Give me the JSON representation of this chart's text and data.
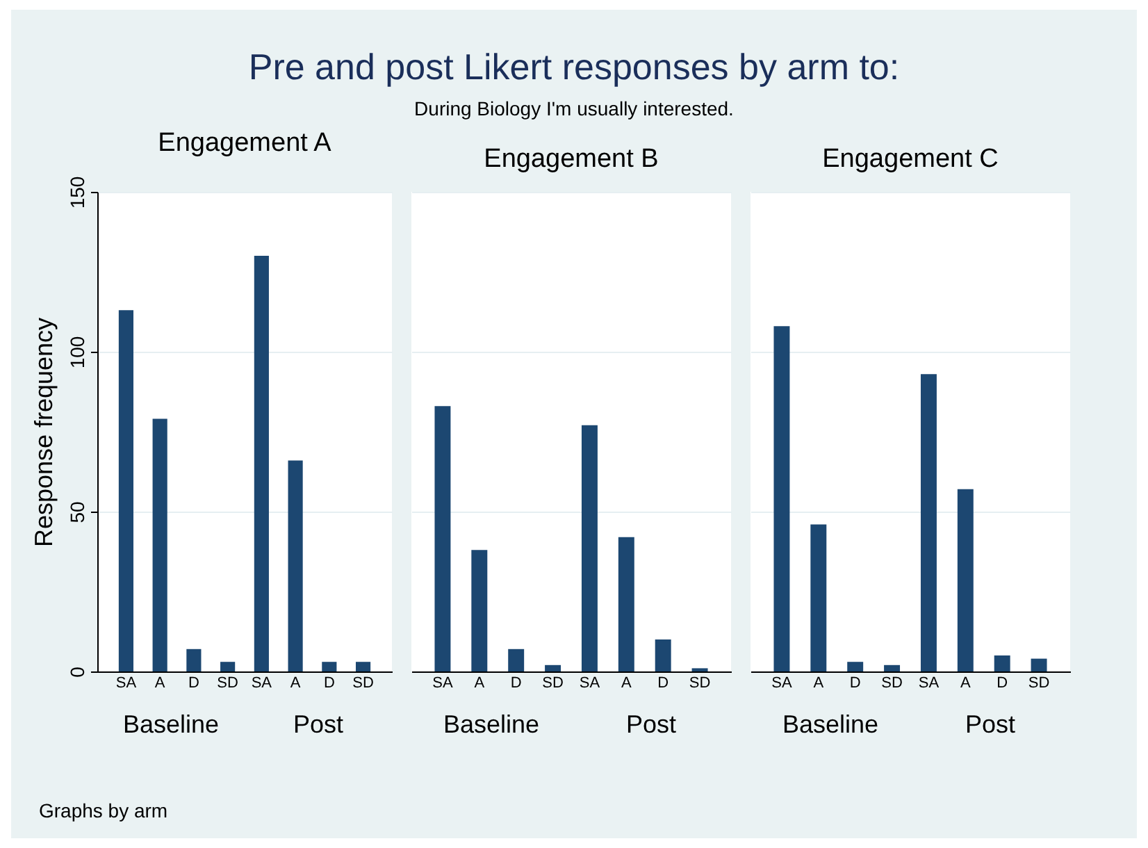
{
  "chart_data": [
    {
      "type": "other",
      "title": "Pre and post Likert responses by arm to:",
      "subtitle": "During Biology I'm usually interested.",
      "annotations": [
        "Graphs by arm"
      ]
    },
    {
      "type": "bar",
      "title": "Engagement A",
      "ylabel": "Response frequency",
      "categories": [
        "SA",
        "A",
        "D",
        "SD",
        "SA",
        "A",
        "D",
        "SD"
      ],
      "values": [
        113,
        79,
        7,
        3,
        130,
        66,
        3,
        3
      ],
      "color": "#1c4771",
      "ylim": [
        0,
        150
      ],
      "yticks": [
        0,
        50,
        100,
        150
      ],
      "grid": "y",
      "annotations": [
        "Baseline",
        "Post"
      ]
    },
    {
      "type": "bar",
      "title": "Engagement B",
      "categories": [
        "SA",
        "A",
        "D",
        "SD",
        "SA",
        "A",
        "D",
        "SD"
      ],
      "values": [
        83,
        38,
        7,
        2,
        77,
        42,
        10,
        1
      ],
      "color": "#1c4771",
      "ylim": [
        0,
        150
      ],
      "yticks": [
        0,
        50,
        100,
        150
      ],
      "grid": "y",
      "tick_labels": "x",
      "annotations": [
        "Baseline",
        "Post"
      ]
    },
    {
      "type": "bar",
      "title": "Engagement C",
      "categories": [
        "SA",
        "A",
        "D",
        "SD",
        "SA",
        "A",
        "D",
        "SD"
      ],
      "values": [
        108,
        46,
        3,
        2,
        93,
        57,
        5,
        4
      ],
      "color": "#1c4771",
      "ylim": [
        0,
        150
      ],
      "yticks": [
        0,
        50,
        100,
        150
      ],
      "grid": "y",
      "tick_labels": "x",
      "annotations": [
        "Baseline",
        "Post"
      ]
    }
  ]
}
